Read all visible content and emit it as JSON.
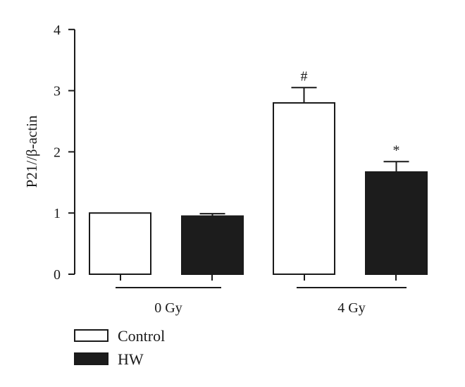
{
  "chart_data": {
    "type": "bar",
    "ylabel": "P21//β-actin",
    "ylim": [
      0,
      4
    ],
    "yticks": [
      0,
      1,
      2,
      3,
      4
    ],
    "grid": false,
    "legend_placement": "bottom-left",
    "categories": [
      "0 Gy",
      "4 Gy"
    ],
    "series": [
      {
        "name": "Control",
        "values": [
          1.0,
          2.8
        ],
        "errors": [
          0,
          0.25
        ],
        "color": "#ffffff",
        "annotations": [
          "",
          "#"
        ]
      },
      {
        "name": "HW",
        "values": [
          0.95,
          1.67
        ],
        "errors": [
          0.04,
          0.17
        ],
        "color": "#1c1c1c",
        "annotations": [
          "",
          "*"
        ]
      }
    ]
  }
}
